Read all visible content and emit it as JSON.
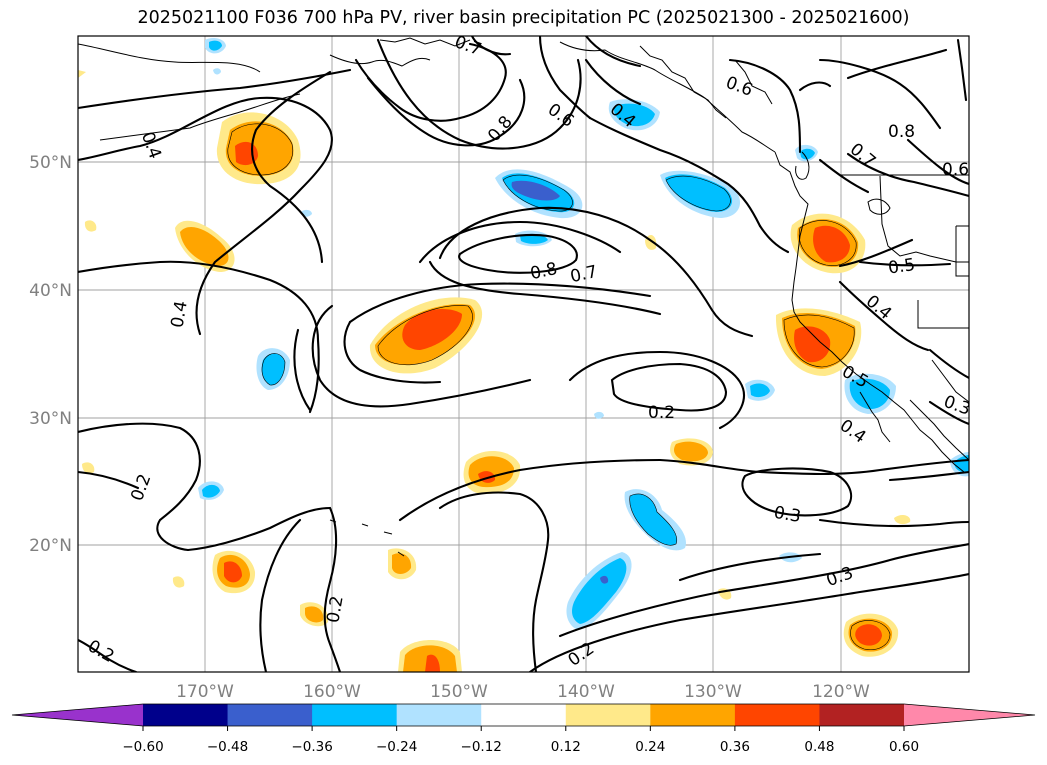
{
  "title": "2025021100 F036 700 hPa PV, river basin precipitation PC (2025021300 - 2025021600)",
  "lat_labels": [
    "50°N",
    "40°N",
    "30°N",
    "20°N"
  ],
  "lon_labels": [
    "170°W",
    "160°W",
    "150°W",
    "140°W",
    "130°W",
    "120°W"
  ],
  "contour_labels": [
    "0.4",
    "0.4",
    "0.8",
    "0.6",
    "0.4",
    "0.6",
    "0.7",
    "0.8",
    "0.6",
    "0.7",
    "0.8",
    "0.7",
    "0.5",
    "0.4",
    "0.5",
    "0.3",
    "0.2",
    "0.4",
    "0.2",
    "0.3",
    "0.3",
    "0.2",
    "0.2",
    "0.2"
  ],
  "colorbar": {
    "ticks": [
      "−0.60",
      "−0.48",
      "−0.36",
      "−0.24",
      "−0.12",
      "0.12",
      "0.24",
      "0.36",
      "0.48",
      "0.60"
    ],
    "colors": [
      "#9932cc",
      "#00008b",
      "#3a5fcd",
      "#00bfff",
      "#b0e2ff",
      "#ffffff",
      "#ffe98a",
      "#ffa500",
      "#ff4500",
      "#b22222",
      "#ff88aa"
    ]
  }
}
